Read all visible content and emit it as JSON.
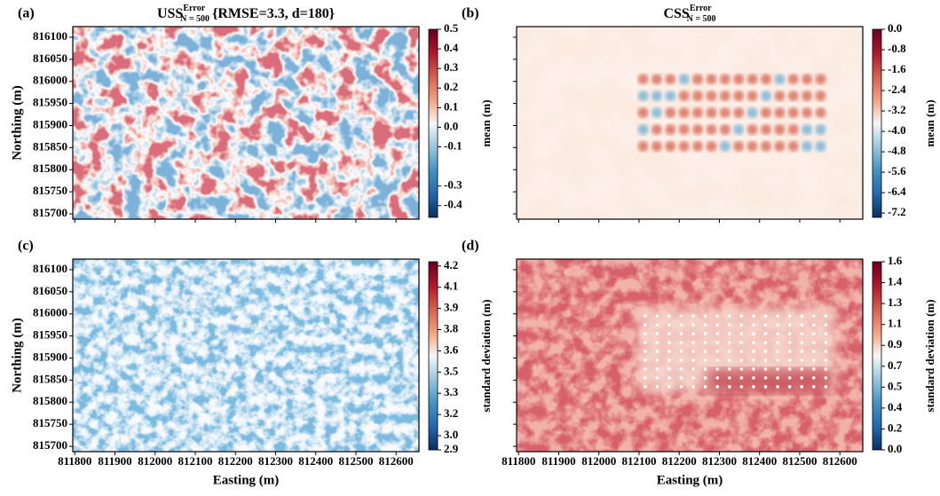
{
  "chart_data": [
    {
      "type": "heatmap",
      "panel": "(a)",
      "title": {
        "main": "USS",
        "superscript": "Error",
        "subscript": "N = 500",
        "suffix": "{RMSE=3.3, d=180}"
      },
      "ylabel": "Northing (m)",
      "colorbar_label": "mean (m)",
      "xlim": [
        811795,
        812657
      ],
      "xticks": [
        811800,
        811900,
        812000,
        812100,
        812200,
        812300,
        812400,
        812500,
        812600
      ],
      "xtick_labels": false,
      "ylim": [
        815688,
        816124
      ],
      "yticks": [
        815700,
        815750,
        815800,
        815850,
        815900,
        815950,
        816000,
        816050,
        816100
      ],
      "ytick_labels": true,
      "clim": [
        -0.46,
        0.5
      ],
      "cticks": [
        0.5,
        0.4,
        0.3,
        0.2,
        0.1,
        {
          "value": 0,
          "label": "0.0"
        },
        -0.1,
        -0.3,
        -0.4
      ],
      "colormap": "RdBu_r"
    },
    {
      "type": "heatmap",
      "panel": "(b)",
      "title": {
        "main": "CSS",
        "superscript": "Error",
        "subscript": "N = 500"
      },
      "colorbar_label": "mean (m)",
      "xlim": [
        811795,
        812657
      ],
      "xticks": [
        811800,
        811900,
        812000,
        812100,
        812200,
        812300,
        812400,
        812500,
        812600
      ],
      "xtick_labels": false,
      "ylim": [
        815688,
        816124
      ],
      "yticks": [
        815700,
        815750,
        815800,
        815850,
        815900,
        815950,
        816000,
        816050,
        816100
      ],
      "ytick_labels": false,
      "clim": [
        -7.37,
        0
      ],
      "cticks": [
        {
          "value": 0,
          "label": "0.0"
        },
        -0.8,
        -1.6,
        -2.4,
        -3.2,
        {
          "value": -4,
          "label": "-4.0"
        },
        -4.8,
        -5.6,
        -6.4,
        -7.2
      ],
      "colormap": "RdBu_r"
    },
    {
      "type": "heatmap",
      "panel": "(c)",
      "xlabel": "Easting (m)",
      "ylabel": "Northing (m)",
      "colorbar_label": "standard deviation (m)",
      "xlim": [
        811795,
        812657
      ],
      "xticks": [
        811800,
        811900,
        812000,
        812100,
        812200,
        812300,
        812400,
        812500,
        812600
      ],
      "xtick_labels": true,
      "ylim": [
        815688,
        816124
      ],
      "yticks": [
        815700,
        815750,
        815800,
        815850,
        815900,
        815950,
        816000,
        816050,
        816100
      ],
      "ytick_labels": true,
      "clim": [
        2.9,
        4.23
      ],
      "cticks": [
        4.2,
        {
          "value": 4.05,
          "label": "4.1"
        },
        3.9,
        {
          "value": 3.75,
          "label": "3.8"
        },
        3.6,
        {
          "value": 3.45,
          "label": "3.5"
        },
        3.3,
        {
          "value": 3.15,
          "label": "3.2"
        },
        {
          "value": 3,
          "label": "3.0"
        },
        2.9
      ],
      "colormap": "RdBu_r"
    },
    {
      "type": "heatmap",
      "panel": "(d)",
      "xlabel": "Easting (m)",
      "colorbar_label": "standard deviation (m)",
      "xlim": [
        811795,
        812657
      ],
      "xticks": [
        811800,
        811900,
        812000,
        812100,
        812200,
        812300,
        812400,
        812500,
        812600
      ],
      "xtick_labels": true,
      "ylim": [
        815688,
        816124
      ],
      "yticks": [
        815700,
        815750,
        815800,
        815850,
        815900,
        815950,
        816000,
        816050,
        816100
      ],
      "ytick_labels": false,
      "clim": [
        0,
        1.62
      ],
      "cticks": [
        {
          "value": 1.62,
          "label": "1.6"
        },
        {
          "value": 1.44,
          "label": "1.4"
        },
        {
          "value": 1.26,
          "label": "1.3"
        },
        {
          "value": 1.08,
          "label": "1.1"
        },
        0.9,
        {
          "value": 0.72,
          "label": "0.7"
        },
        {
          "value": 0.54,
          "label": "0.5"
        },
        {
          "value": 0.36,
          "label": "0.4"
        },
        {
          "value": 0.18,
          "label": "0.2"
        },
        {
          "value": 0,
          "label": "0.0"
        }
      ],
      "colormap": "RdBu_r"
    }
  ]
}
